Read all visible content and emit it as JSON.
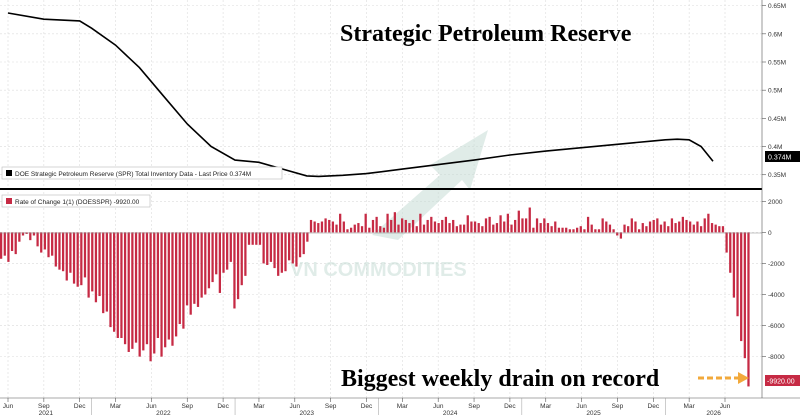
{
  "chart_data": [
    {
      "type": "line",
      "title": "Strategic Petroleum Reserve",
      "legend": "DOE Strategic Petroleum Reserve (SPR) Total Inventory Data - Last Price 0.374M",
      "y_ticks": [
        "0.35M",
        "0.4M",
        "0.45M",
        "0.5M",
        "0.55M",
        "0.6M",
        "0.65M"
      ],
      "ylim": [
        0.33,
        0.66
      ],
      "last_value_label": "0.374M",
      "color": "#000000",
      "x": [
        "2021-06",
        "2021-09",
        "2021-12",
        "2022-01",
        "2022-03",
        "2022-05",
        "2022-07",
        "2022-09",
        "2022-11",
        "2023-01",
        "2023-03",
        "2023-05",
        "2023-07",
        "2023-08",
        "2023-10",
        "2023-12",
        "2024-03",
        "2024-06",
        "2024-09",
        "2024-12",
        "2025-03",
        "2025-06",
        "2025-09",
        "2025-12",
        "2026-01",
        "2026-02",
        "2026-03",
        "2026-04",
        "2026-05"
      ],
      "values": [
        0.637,
        0.626,
        0.623,
        0.61,
        0.58,
        0.54,
        0.49,
        0.44,
        0.4,
        0.376,
        0.372,
        0.36,
        0.348,
        0.347,
        0.349,
        0.352,
        0.36,
        0.368,
        0.376,
        0.385,
        0.392,
        0.398,
        0.404,
        0.41,
        0.412,
        0.413,
        0.412,
        0.4,
        0.374
      ]
    },
    {
      "type": "bar",
      "legend": "Rate of Change 1(1) (DOESSPR) -9920.00",
      "y_ticks": [
        "2000",
        "0",
        "-2000",
        "-4000",
        "-6000",
        "-8000"
      ],
      "ylim": [
        -10600,
        2600
      ],
      "last_value_label": "-9920.00",
      "color": "#c62a44",
      "values": [
        -1700,
        -1500,
        -1900,
        -1200,
        -1400,
        -600,
        -200,
        -100,
        -500,
        -200,
        -900,
        -1300,
        -1100,
        -1600,
        -1500,
        -2200,
        -2400,
        -2500,
        -3100,
        -2600,
        -3300,
        -3500,
        -3400,
        -2900,
        -4200,
        -3800,
        -4500,
        -4100,
        -5200,
        -5100,
        -6100,
        -6400,
        -6800,
        -6800,
        -7200,
        -7700,
        -7500,
        -7100,
        -8000,
        -7600,
        -7200,
        -8300,
        -7800,
        -6800,
        -8000,
        -7400,
        -6900,
        -7300,
        -6700,
        -5900,
        -6200,
        -4700,
        -5300,
        -4600,
        -4800,
        -4200,
        -4000,
        -3600,
        -3200,
        -2700,
        -3900,
        -2600,
        -2400,
        -1900,
        -4900,
        -4300,
        -3400,
        -2800,
        -800,
        -800,
        -800,
        -800,
        -2000,
        -2100,
        -1900,
        -2300,
        -2800,
        -2600,
        -2500,
        -1800,
        -2000,
        -2200,
        -1600,
        -1400,
        -600,
        800,
        700,
        600,
        700,
        900,
        800,
        700,
        500,
        1200,
        700,
        200,
        300,
        500,
        600,
        400,
        1200,
        300,
        800,
        1000,
        400,
        300,
        1200,
        800,
        1300,
        500,
        900,
        800,
        600,
        800,
        400,
        1200,
        500,
        800,
        1000,
        700,
        600,
        800,
        1000,
        600,
        800,
        400,
        500,
        500,
        1100,
        700,
        700,
        600,
        400,
        900,
        1000,
        500,
        600,
        1100,
        700,
        1200,
        500,
        800,
        1400,
        900,
        900,
        1600,
        300,
        900,
        600,
        900,
        600,
        400,
        700,
        300,
        300,
        300,
        200,
        200,
        300,
        400,
        200,
        1000,
        500,
        200,
        200,
        900,
        700,
        500,
        200,
        -200,
        -400,
        500,
        400,
        900,
        700,
        200,
        600,
        400,
        700,
        800,
        900,
        500,
        700,
        400,
        900,
        600,
        700,
        1000,
        800,
        700,
        500,
        700,
        400,
        900,
        1200,
        600,
        500,
        400,
        400,
        -1300,
        -2600,
        -4200,
        -5400,
        -7000,
        -8100,
        -9920
      ]
    }
  ],
  "x_ticks": [
    "Jun",
    "Sep",
    "Dec",
    "Mar",
    "Jun",
    "Sep",
    "Dec",
    "Mar",
    "Jun",
    "Sep",
    "Dec",
    "Mar",
    "Jun",
    "Sep",
    "Dec",
    "Mar",
    "Jun",
    "Sep",
    "Dec",
    "Mar",
    "Jun"
  ],
  "x_tick_dates": [
    "2021-06",
    "2021-09",
    "2021-12",
    "2022-03",
    "2022-06",
    "2022-09",
    "2022-12",
    "2023-03",
    "2023-06",
    "2023-09",
    "2023-12",
    "2024-03",
    "2024-06",
    "2024-09",
    "2024-12",
    "2025-03",
    "2025-06",
    "2025-09",
    "2025-12",
    "2026-03",
    "2026-06"
  ],
  "years": [
    "2021",
    "2022",
    "2023",
    "2024",
    "2025",
    "2026"
  ],
  "annotation": "Biggest weekly drain on record",
  "watermark": "VN COMMODITIES",
  "colors": {
    "line": "#000000",
    "bars": "#c62a44",
    "arrow": "#f2a93b",
    "watermark": "#c7ddd6"
  }
}
